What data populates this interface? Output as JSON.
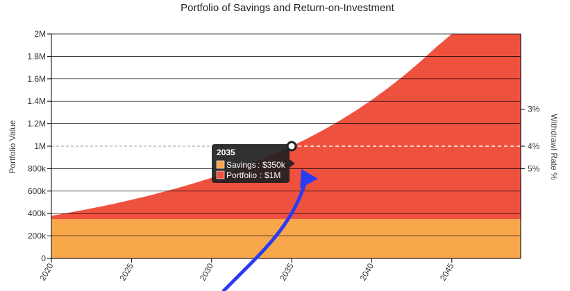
{
  "chart_data": {
    "type": "area",
    "title": "Portfolio of Savings and Return-on-Investment",
    "xlabel": "",
    "ylabel": "Portfolio Value",
    "y2label": "Withdrawl Rate %",
    "xlim": [
      2020,
      2049.3
    ],
    "ylim": [
      0,
      2000000
    ],
    "x_ticks": [
      {
        "value": 2020,
        "label": "2020"
      },
      {
        "value": 2025,
        "label": "2025"
      },
      {
        "value": 2030,
        "label": "2030"
      },
      {
        "value": 2035,
        "label": "2035"
      },
      {
        "value": 2040,
        "label": "2040"
      },
      {
        "value": 2045,
        "label": "2045"
      }
    ],
    "y_ticks": [
      {
        "value": 0,
        "label": "0"
      },
      {
        "value": 200000,
        "label": "200k"
      },
      {
        "value": 400000,
        "label": "400k"
      },
      {
        "value": 600000,
        "label": "600k"
      },
      {
        "value": 800000,
        "label": "800k"
      },
      {
        "value": 1000000,
        "label": "1M"
      },
      {
        "value": 1200000,
        "label": "1.2M"
      },
      {
        "value": 1400000,
        "label": "1.4M"
      },
      {
        "value": 1600000,
        "label": "1.6M"
      },
      {
        "value": 1800000,
        "label": "1.8M"
      },
      {
        "value": 2000000,
        "label": "2M"
      }
    ],
    "y2_ticks": [
      {
        "label": "3%",
        "at_value": 1330000
      },
      {
        "label": "4%",
        "at_value": 1000000
      },
      {
        "label": "5%",
        "at_value": 800000
      }
    ],
    "grid": true,
    "reference_line": {
      "value": 1000000,
      "style": "dashed"
    },
    "x": [
      2020,
      2021,
      2022,
      2023,
      2024,
      2025,
      2026,
      2027,
      2028,
      2029,
      2030,
      2031,
      2032,
      2033,
      2034,
      2035,
      2036,
      2037,
      2038,
      2039,
      2040,
      2041,
      2042,
      2043,
      2044,
      2045,
      2046,
      2047,
      2048,
      2049.3
    ],
    "series": [
      {
        "name": "Savings",
        "color": "#f9a74b",
        "values": [
          350000,
          350000,
          350000,
          350000,
          350000,
          350000,
          350000,
          350000,
          350000,
          350000,
          350000,
          350000,
          350000,
          350000,
          350000,
          350000,
          350000,
          350000,
          350000,
          350000,
          350000,
          350000,
          350000,
          350000,
          350000,
          350000,
          350000,
          350000,
          350000,
          350000
        ]
      },
      {
        "name": "Portfolio",
        "color": "#ef513f",
        "values": [
          380000,
          405000,
          432000,
          460000,
          490000,
          522000,
          556000,
          593000,
          632000,
          674000,
          718000,
          766000,
          818000,
          874000,
          935000,
          1000000,
          1070000,
          1146000,
          1228000,
          1316000,
          1412000,
          1516000,
          1628000,
          1749000,
          1880000,
          2000000,
          2000000,
          2000000,
          2000000,
          2000000
        ]
      }
    ],
    "tooltip": {
      "title": "2035",
      "rows": [
        {
          "name": "Savings",
          "value": "$350k",
          "color": "#f9a74b"
        },
        {
          "name": "Portfolio",
          "value": "$1M",
          "color": "#ef513f"
        }
      ]
    },
    "highlight_point": {
      "x": 2035,
      "y": 1000000
    }
  }
}
